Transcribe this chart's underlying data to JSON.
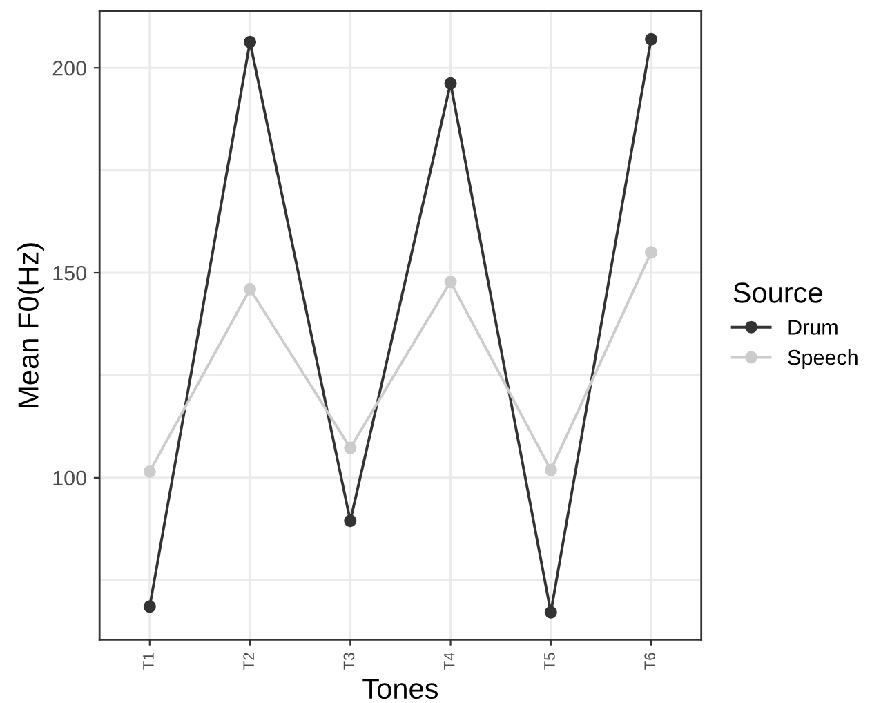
{
  "chart_data": {
    "type": "line",
    "xlabel": "Tones",
    "ylabel": "Mean F0(Hz)",
    "legend_title": "Source",
    "legend": "right",
    "marker": "circle",
    "line_style": "solid",
    "grid": true,
    "categories": [
      "T1",
      "T2",
      "T3",
      "T4",
      "T5",
      "T6"
    ],
    "ylim": [
      60.5,
      213.8
    ],
    "yticks": [
      {
        "value": 75,
        "label": null
      },
      100,
      {
        "value": 125,
        "label": null
      },
      150,
      {
        "value": 175,
        "label": null
      },
      200
    ],
    "series": [
      {
        "name": "Drum",
        "color": "#333333",
        "values": [
          68.6,
          206.3,
          89.5,
          196.2,
          67.2,
          207
        ]
      },
      {
        "name": "Speech",
        "color": "#cccccc",
        "values": [
          101.5,
          146,
          107.3,
          147.8,
          101.9,
          155
        ]
      }
    ]
  }
}
